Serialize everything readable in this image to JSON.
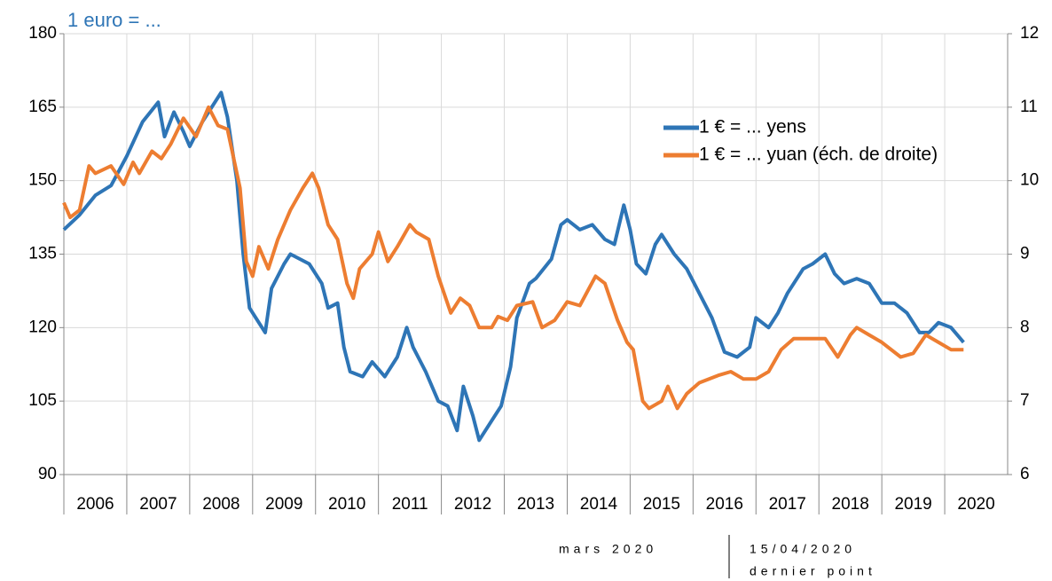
{
  "chart_data": {
    "type": "line",
    "title": "1 euro = ...",
    "xlim": [
      2006,
      2021
    ],
    "xticks": [
      2006,
      2007,
      2008,
      2009,
      2010,
      2011,
      2012,
      2013,
      2014,
      2015,
      2016,
      2017,
      2018,
      2019,
      2020
    ],
    "ylim": [
      90,
      180
    ],
    "yticks": [
      90,
      105,
      120,
      135,
      150,
      165,
      180
    ],
    "y2lim": [
      6,
      12
    ],
    "y2ticks": [
      6,
      7,
      8,
      9,
      10,
      11,
      12
    ],
    "grid": true,
    "legend": "upper right",
    "annotations": [
      "mars 2020",
      "15/04/2020",
      "dernier point"
    ],
    "series": [
      {
        "name": "1 € = ... yens",
        "color": "#2e75b6",
        "x": [
          2006.0,
          2006.25,
          2006.5,
          2006.75,
          2007.0,
          2007.25,
          2007.5,
          2007.6,
          2007.75,
          2007.9,
          2008.0,
          2008.2,
          2008.5,
          2008.6,
          2008.75,
          2008.85,
          2008.95,
          2009.1,
          2009.2,
          2009.3,
          2009.5,
          2009.6,
          2009.75,
          2009.9,
          2010.1,
          2010.2,
          2010.35,
          2010.45,
          2010.55,
          2010.75,
          2010.9,
          2011.1,
          2011.3,
          2011.45,
          2011.55,
          2011.75,
          2011.95,
          2012.1,
          2012.25,
          2012.35,
          2012.5,
          2012.6,
          2012.8,
          2012.95,
          2013.1,
          2013.2,
          2013.4,
          2013.5,
          2013.75,
          2013.9,
          2014.0,
          2014.2,
          2014.4,
          2014.6,
          2014.75,
          2014.9,
          2015.0,
          2015.1,
          2015.25,
          2015.4,
          2015.5,
          2015.7,
          2015.9,
          2016.1,
          2016.3,
          2016.5,
          2016.7,
          2016.9,
          2017.0,
          2017.2,
          2017.35,
          2017.5,
          2017.75,
          2017.9,
          2018.1,
          2018.25,
          2018.4,
          2018.6,
          2018.8,
          2019.0,
          2019.2,
          2019.4,
          2019.6,
          2019.75,
          2019.9,
          2020.1,
          2020.3
        ],
        "values": [
          140,
          143,
          147,
          149,
          155,
          162,
          166,
          159,
          164,
          160,
          157,
          162,
          168,
          163,
          150,
          135,
          124,
          121,
          119,
          128,
          133,
          135,
          134,
          133,
          129,
          124,
          125,
          116,
          111,
          110,
          113,
          110,
          114,
          120,
          116,
          111,
          105,
          104,
          99,
          108,
          102,
          97,
          101,
          104,
          112,
          122,
          129,
          130,
          134,
          141,
          142,
          140,
          141,
          138,
          137,
          145,
          140,
          133,
          131,
          137,
          139,
          135,
          132,
          127,
          122,
          115,
          114,
          116,
          122,
          120,
          123,
          127,
          132,
          133,
          135,
          131,
          129,
          130,
          129,
          125,
          125,
          123,
          119,
          119,
          121,
          120,
          117
        ]
      },
      {
        "name": "1 € = ... yuan (éch. de droite)",
        "color": "#ed7d31",
        "axis": "y2",
        "x": [
          2006.0,
          2006.1,
          2006.25,
          2006.4,
          2006.5,
          2006.75,
          2006.95,
          2007.1,
          2007.2,
          2007.4,
          2007.55,
          2007.7,
          2007.9,
          2008.1,
          2008.3,
          2008.45,
          2008.6,
          2008.8,
          2008.9,
          2009.0,
          2009.1,
          2009.25,
          2009.4,
          2009.6,
          2009.8,
          2009.95,
          2010.05,
          2010.2,
          2010.35,
          2010.5,
          2010.6,
          2010.7,
          2010.9,
          2011.0,
          2011.15,
          2011.3,
          2011.5,
          2011.6,
          2011.8,
          2011.95,
          2012.15,
          2012.3,
          2012.45,
          2012.6,
          2012.8,
          2012.9,
          2013.05,
          2013.2,
          2013.45,
          2013.6,
          2013.8,
          2014.0,
          2014.2,
          2014.45,
          2014.6,
          2014.8,
          2014.95,
          2015.05,
          2015.2,
          2015.3,
          2015.5,
          2015.6,
          2015.75,
          2015.9,
          2016.1,
          2016.4,
          2016.6,
          2016.8,
          2017.0,
          2017.2,
          2017.4,
          2017.6,
          2017.9,
          2018.1,
          2018.3,
          2018.5,
          2018.6,
          2018.8,
          2019.0,
          2019.3,
          2019.5,
          2019.7,
          2019.9,
          2020.1,
          2020.3
        ],
        "values": [
          9.7,
          9.5,
          9.6,
          10.2,
          10.1,
          10.2,
          9.95,
          10.25,
          10.1,
          10.4,
          10.3,
          10.5,
          10.85,
          10.6,
          11.0,
          10.75,
          10.7,
          9.9,
          8.9,
          8.7,
          9.1,
          8.8,
          9.2,
          9.6,
          9.9,
          10.1,
          9.9,
          9.4,
          9.2,
          8.6,
          8.4,
          8.8,
          9.0,
          9.3,
          8.9,
          9.1,
          9.4,
          9.3,
          9.2,
          8.7,
          8.2,
          8.4,
          8.3,
          8.0,
          8.0,
          8.15,
          8.1,
          8.3,
          8.35,
          8.0,
          8.1,
          8.35,
          8.3,
          8.7,
          8.6,
          8.1,
          7.8,
          7.7,
          7.0,
          6.9,
          7.0,
          7.2,
          6.9,
          7.1,
          7.25,
          7.35,
          7.4,
          7.3,
          7.3,
          7.4,
          7.7,
          7.85,
          7.85,
          7.85,
          7.6,
          7.9,
          8.0,
          7.9,
          7.8,
          7.6,
          7.65,
          7.9,
          7.8,
          7.7,
          7.7
        ]
      }
    ]
  }
}
